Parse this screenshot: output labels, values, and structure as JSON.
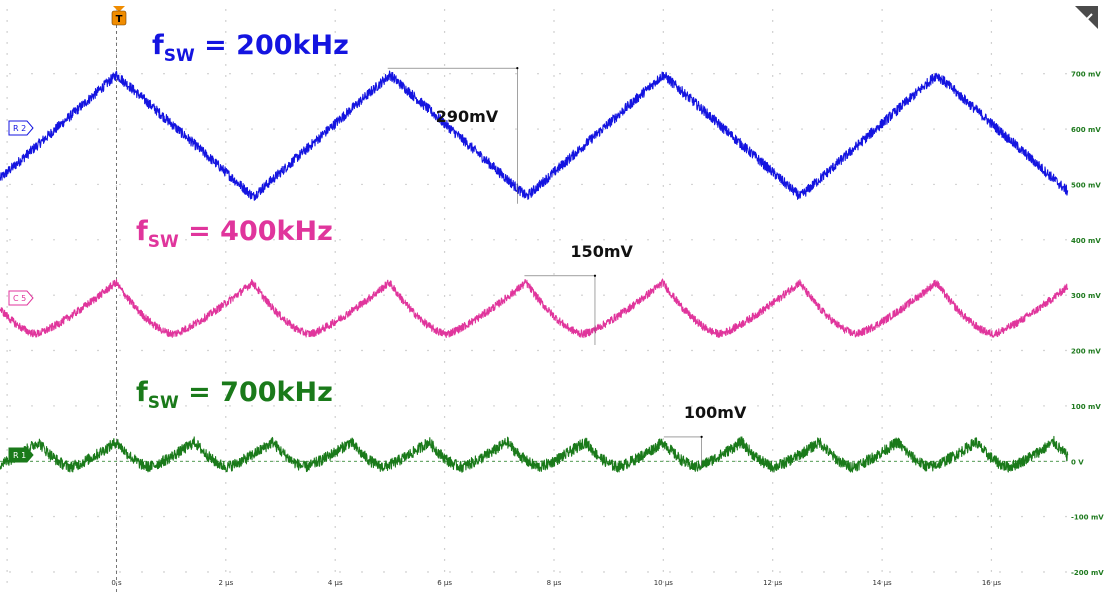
{
  "chart_data": {
    "type": "line",
    "title": "",
    "xlabel": "",
    "ylabel": "",
    "x_unit": "µs",
    "x_range": [
      -2.13,
      17.4
    ],
    "y_range_mV": [
      -200,
      750
    ],
    "x_ticks": [
      {
        "value": 0,
        "label": "0 s"
      },
      {
        "value": 2,
        "label": "2 µs"
      },
      {
        "value": 4,
        "label": "4 µs"
      },
      {
        "value": 6,
        "label": "6 µs"
      },
      {
        "value": 8,
        "label": "8 µs"
      },
      {
        "value": 10,
        "label": "10 µs"
      },
      {
        "value": 12,
        "label": "12 µs"
      },
      {
        "value": 14,
        "label": "14 µs"
      },
      {
        "value": 16,
        "label": "16 µs"
      }
    ],
    "y_ticks": [
      {
        "value": 700,
        "label": "700 mV"
      },
      {
        "value": 600,
        "label": "600 mV"
      },
      {
        "value": 500,
        "label": "500 mV"
      },
      {
        "value": 400,
        "label": "400 mV"
      },
      {
        "value": 300,
        "label": "300 mV"
      },
      {
        "value": 200,
        "label": "200 mV"
      },
      {
        "value": 100,
        "label": "100 mV"
      },
      {
        "value": 0,
        "label": "0 V"
      },
      {
        "value": -100,
        "label": "-100 mV"
      },
      {
        "value": -200,
        "label": "-200 mV"
      }
    ],
    "trigger_label": "T",
    "trigger_time": 0,
    "series": [
      {
        "name": "R2",
        "channel_tag": "R 2",
        "label_main": "f",
        "label_sub": "SW",
        "label_rest": " = 200kHz",
        "color": "#1414e0",
        "freq_khz": 200,
        "peak_mV": 698,
        "valley_mV": 478,
        "noise_mV": 9,
        "peak_times": [
          0,
          4.96,
          9.95,
          14.95
        ],
        "valley_times": [
          2.2,
          7.3,
          12.2,
          17.2
        ],
        "annotation": {
          "text": "290mV",
          "x_start": 4.96,
          "x_end": 7.33,
          "y_top": 710,
          "y_bottom": 465
        }
      },
      {
        "name": "C5",
        "channel_tag": "C 5",
        "label_main": "f",
        "label_sub": "SW",
        "label_rest": " = 400kHz",
        "color": "#e0359c",
        "freq_khz": 400,
        "peak_mV": 323,
        "valley_mV": 230,
        "noise_mV": 7,
        "peak_times": [
          -0.01,
          2.49,
          4.98,
          7.46,
          9.95,
          12.44,
          14.93,
          17.42
        ],
        "annotation": {
          "text": "150mV",
          "x_start": 7.46,
          "x_end": 8.75,
          "y_top": 335,
          "y_bottom": 210
        }
      },
      {
        "name": "R1",
        "channel_tag": "R 1",
        "label_main": "f",
        "label_sub": "SW",
        "label_rest": " = 700kHz",
        "color": "#1a7a1a",
        "freq_khz": 700,
        "peak_mV": 35,
        "valley_mV": -10,
        "noise_mV": 10,
        "peak_times": [
          0,
          1.43,
          2.86,
          4.29,
          5.71,
          7.14,
          8.57,
          10,
          11.43,
          12.86,
          14.29,
          15.71,
          17.14
        ],
        "annotation": {
          "text": "100mV",
          "x_start": 10.01,
          "x_end": 10.7,
          "y_top": 44,
          "y_bottom": -10
        }
      }
    ],
    "grid": true,
    "legend": "none"
  }
}
